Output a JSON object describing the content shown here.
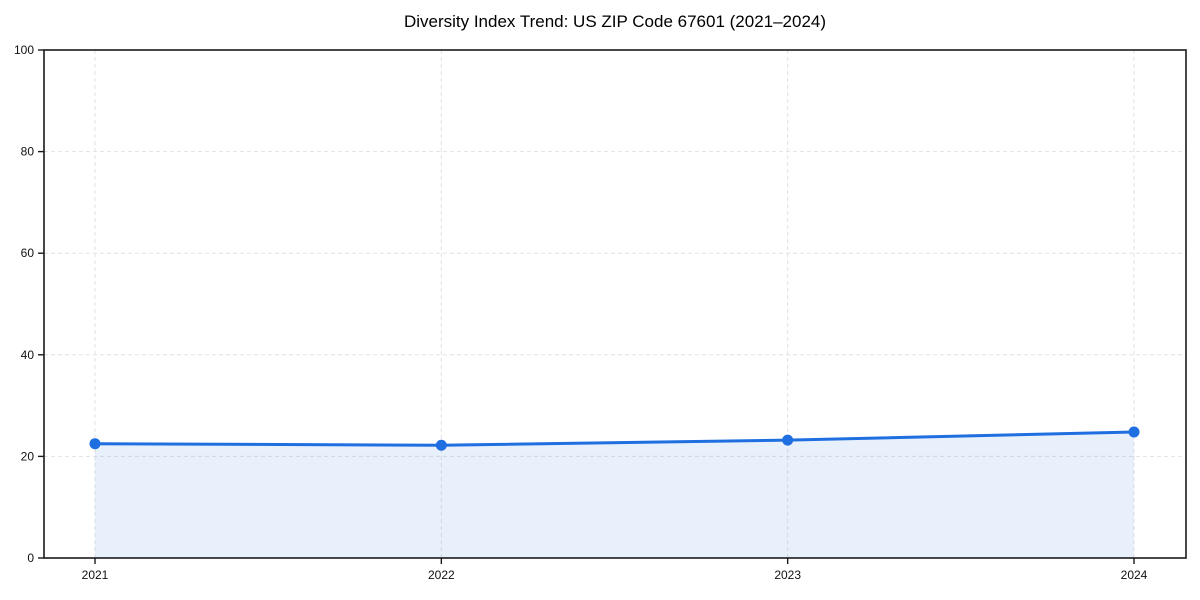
{
  "chart_data": {
    "type": "line",
    "title": "Diversity Index Trend: US ZIP Code 67601 (2021–2024)",
    "categories": [
      "2021",
      "2022",
      "2023",
      "2024"
    ],
    "series": [
      {
        "name": "Diversity Index",
        "values": [
          22.5,
          22.2,
          23.2,
          24.8
        ]
      }
    ],
    "xlabel": "",
    "ylabel": "",
    "ylim": [
      0,
      100
    ],
    "yticks": [
      0,
      20,
      40,
      60,
      80,
      100
    ],
    "grid": true,
    "grid_style": "dashed",
    "legend": "none",
    "area_fill": true,
    "marker": "circle",
    "colors": {
      "line": "#1f6fe0",
      "marker": "#1f6fe0",
      "area_fill": "rgba(31,111,224,0.10)",
      "grid": "#e2e2e2",
      "spine": "#1a1a1a",
      "tick_text": "#111111",
      "title_text": "#000000",
      "background": "#ffffff"
    }
  }
}
